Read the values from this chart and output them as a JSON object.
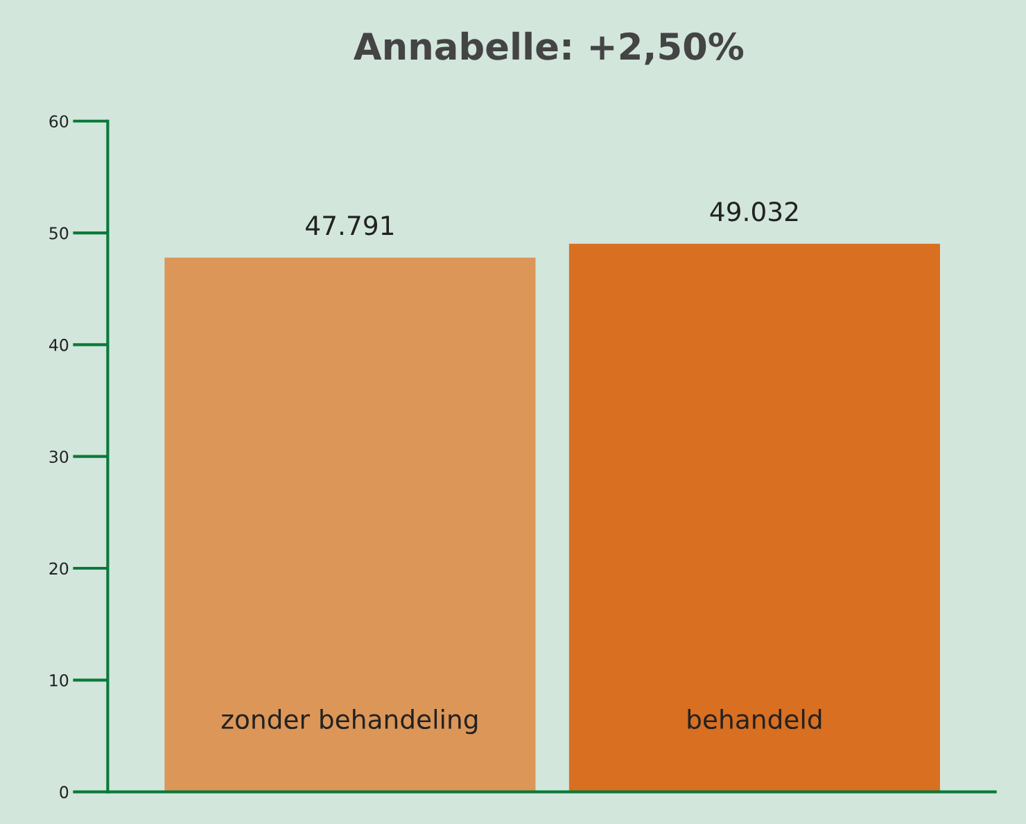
{
  "chart_data": {
    "type": "bar",
    "title": "Annabelle: +2,50%",
    "categories": [
      "zonder behandeling",
      "behandeld"
    ],
    "values": [
      47.791,
      49.032
    ],
    "colors": [
      "#dc9658",
      "#d96f20"
    ],
    "ylim": [
      0,
      60
    ],
    "yticks": [
      0,
      10,
      20,
      30,
      40,
      50,
      60
    ],
    "data_labels": true,
    "grid": false,
    "legend": false,
    "tick_labels": "y"
  }
}
